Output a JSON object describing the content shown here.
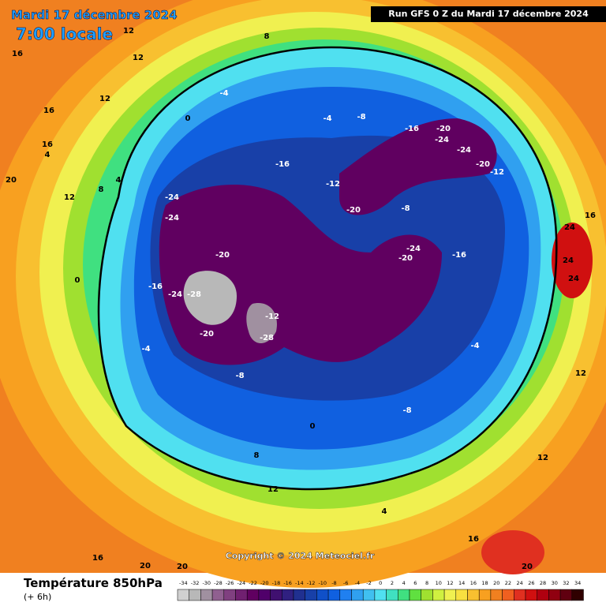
{
  "header": {
    "date": "Mardi 17 décembre 2024",
    "time": "7:00 locale",
    "run": "Run GFS 0 Z du Mardi 17 décembre 2024"
  },
  "copyright": "Copyright © 2024 Meteociel.fr",
  "footer": {
    "title": "Température 850hPa",
    "step": "(+ 6h)"
  },
  "legend": {
    "values": [
      -34,
      -32,
      -30,
      -28,
      -26,
      -24,
      -22,
      -20,
      -18,
      -16,
      -14,
      -12,
      -10,
      -8,
      -6,
      -4,
      -2,
      0,
      2,
      4,
      6,
      8,
      10,
      12,
      14,
      16,
      18,
      20,
      22,
      24,
      26,
      28,
      30,
      32,
      34
    ],
    "colors": [
      "#d0d0d0",
      "#b8b8b8",
      "#a090a0",
      "#906090",
      "#804080",
      "#702070",
      "#600060",
      "#50006a",
      "#401070",
      "#302080",
      "#203090",
      "#1840a8",
      "#1050c8",
      "#1060e0",
      "#2080f0",
      "#30a0f0",
      "#40c0f0",
      "#50e0f0",
      "#40e0c0",
      "#40e080",
      "#60e040",
      "#a0e030",
      "#d0f040",
      "#f0f050",
      "#f8e040",
      "#f8c030",
      "#f8a020",
      "#f08020",
      "#f06020",
      "#e03020",
      "#d01010",
      "#b00010",
      "#900010",
      "#600010",
      "#300000"
    ]
  },
  "map_labels": [
    16,
    16,
    12,
    12,
    8,
    12,
    16,
    20,
    12,
    8,
    4,
    0,
    -4,
    0,
    -4,
    -8,
    -16,
    -20,
    -24,
    -24,
    -20,
    -12,
    -16,
    -12,
    -20,
    -8,
    -24,
    -24,
    -20,
    -28,
    -24,
    -16,
    -12,
    -28,
    -20,
    -8,
    -24,
    -20,
    -16,
    -8,
    0,
    4,
    12,
    16,
    20,
    20,
    24,
    24,
    24,
    16,
    12,
    12,
    20,
    16,
    -4,
    -4,
    4,
    8
  ]
}
